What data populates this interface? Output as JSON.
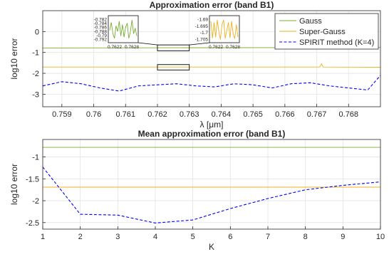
{
  "chart_data": [
    {
      "type": "line",
      "title": "Approximation error (band B1)",
      "xlabel": "λ [μm]",
      "ylabel": "log10 error",
      "xlim": [
        0.7584,
        0.769
      ],
      "ylim": [
        -3.6,
        1.0
      ],
      "xticks": [
        0.759,
        0.76,
        0.761,
        0.762,
        0.763,
        0.764,
        0.765,
        0.766,
        0.767,
        0.768
      ],
      "xtick_labels": [
        "0.759",
        "0.76",
        "0.761",
        "0.762",
        "0.763",
        "0.764",
        "0.765",
        "0.766",
        "0.767",
        "0.768"
      ],
      "yticks": [
        0,
        -1,
        -2,
        -3
      ],
      "ytick_labels": [
        "0",
        "-1",
        "-2",
        "-3"
      ],
      "grid": true,
      "legend_position": "top-right",
      "series": [
        {
          "name": "Gauss",
          "color": "#77AC30",
          "style": "solid",
          "x": [
            0.7584,
            0.769
          ],
          "y": [
            -0.785,
            -0.76
          ]
        },
        {
          "name": "Super-Gauss",
          "color": "#EDB120",
          "style": "solid",
          "x": [
            0.7584,
            0.7671,
            0.76715,
            0.7672,
            0.769
          ],
          "y": [
            -1.7,
            -1.7,
            -1.55,
            -1.7,
            -1.71
          ]
        },
        {
          "name": "SPIRIT method (K=4)",
          "color": "#0000FF",
          "style": "dashed",
          "x": [
            0.7584,
            0.759,
            0.7596,
            0.7602,
            0.7608,
            0.7614,
            0.762,
            0.7626,
            0.7632,
            0.7638,
            0.7644,
            0.765,
            0.7656,
            0.7662,
            0.7668,
            0.7674,
            0.768,
            0.7686,
            0.769
          ],
          "y": [
            -2.6,
            -2.4,
            -2.5,
            -2.7,
            -2.85,
            -2.6,
            -2.55,
            -2.5,
            -2.6,
            -2.65,
            -2.5,
            -2.55,
            -2.7,
            -2.5,
            -2.45,
            -2.6,
            -2.7,
            -2.8,
            -2.1
          ]
        }
      ],
      "insets": [
        {
          "series": "Gauss",
          "color": "#77AC30",
          "ytick_labels": [
            "-0.782",
            "-0.784",
            "-0.786",
            "-0.788",
            "-0.79",
            "-0.792"
          ],
          "xtick_labels": [
            "0.7622",
            "0.7628"
          ]
        },
        {
          "series": "Super-Gauss",
          "color": "#EDB120",
          "ytick_labels": [
            "-1.69",
            "-1.695",
            "-1.7",
            "-1.705"
          ],
          "xtick_labels": [
            "0.7622",
            "0.7628"
          ]
        }
      ]
    },
    {
      "type": "line",
      "title": "Mean approximation error (band B1)",
      "xlabel": "K",
      "ylabel": "log10 error",
      "xlim": [
        1,
        10
      ],
      "ylim": [
        -2.65,
        -0.6
      ],
      "xticks": [
        1,
        2,
        3,
        4,
        5,
        6,
        7,
        8,
        9,
        10
      ],
      "xtick_labels": [
        "1",
        "2",
        "3",
        "4",
        "5",
        "6",
        "7",
        "8",
        "9",
        "10"
      ],
      "yticks": [
        -1,
        -1.5,
        -2,
        -2.5
      ],
      "ytick_labels": [
        "-1",
        "-1.5",
        "-2",
        "-2.5"
      ],
      "grid": true,
      "series": [
        {
          "name": "Gauss",
          "color": "#77AC30",
          "style": "solid",
          "x": [
            1,
            10
          ],
          "y": [
            -0.78,
            -0.78
          ]
        },
        {
          "name": "Super-Gauss",
          "color": "#EDB120",
          "style": "solid",
          "x": [
            1,
            10
          ],
          "y": [
            -1.69,
            -1.69
          ]
        },
        {
          "name": "SPIRIT method (K=4)",
          "color": "#0000FF",
          "style": "dashed",
          "x": [
            1,
            2,
            3,
            4,
            5,
            6,
            7,
            8,
            9,
            10
          ],
          "y": [
            -1.23,
            -2.31,
            -2.33,
            -2.51,
            -2.44,
            -2.18,
            -1.95,
            -1.75,
            -1.65,
            -1.57
          ]
        }
      ]
    }
  ]
}
